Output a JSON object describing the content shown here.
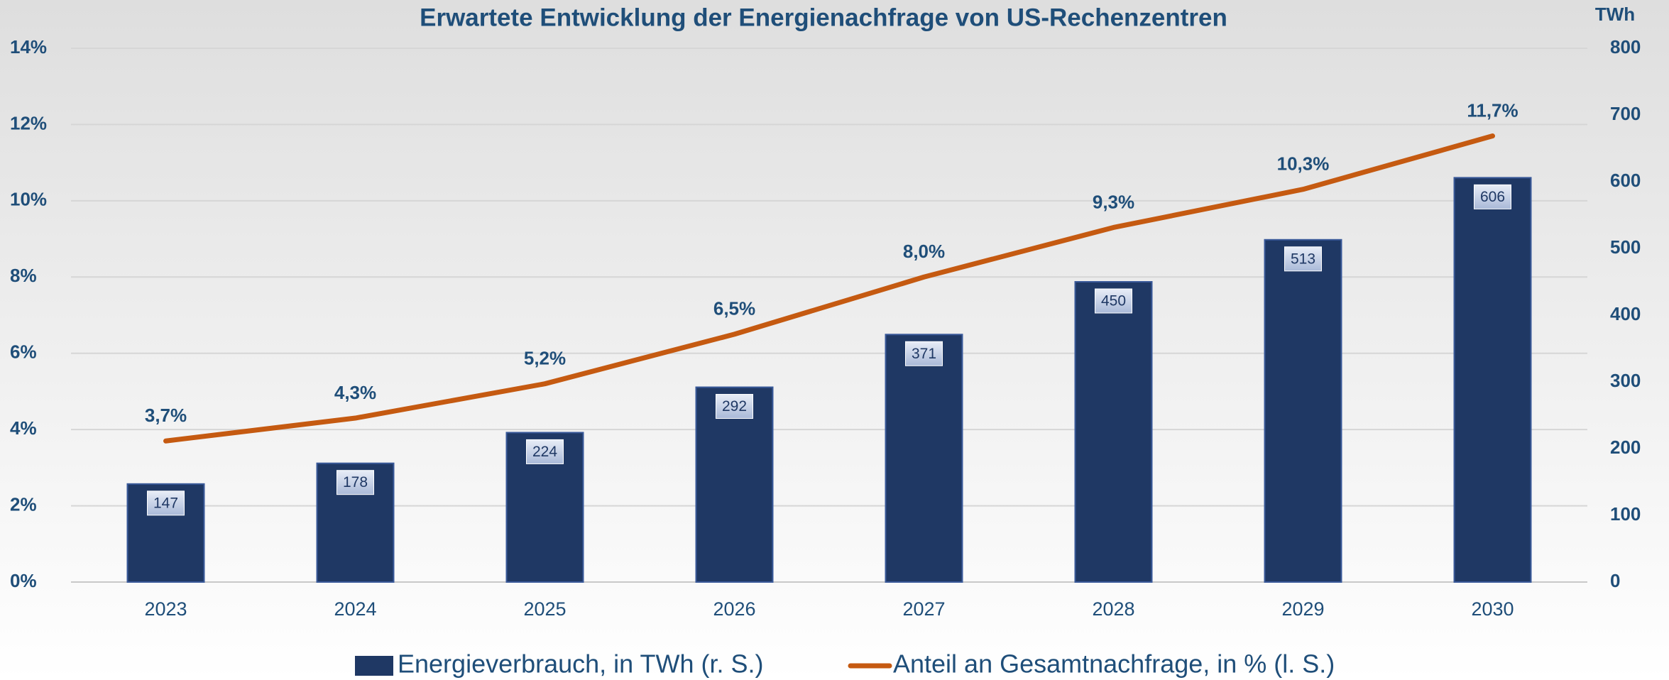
{
  "chart_data": {
    "type": "bar",
    "title": "Erwartete Entwicklung der Energienachfrage von US-Rechenzentren",
    "y2label": "TWh",
    "categories": [
      "2023",
      "2024",
      "2025",
      "2026",
      "2027",
      "2028",
      "2029",
      "2030"
    ],
    "series": [
      {
        "name": "Energieverbrauch, in TWh (r. S.)",
        "type": "bar",
        "axis": "y2",
        "color": "#1f3864",
        "values": [
          147,
          178,
          224,
          292,
          371,
          450,
          513,
          606
        ]
      },
      {
        "name": "Anteil an Gesamtnachfrage, in % (l. S.)",
        "type": "line",
        "color": "#c55a11",
        "values": [
          3.7,
          4.3,
          5.2,
          6.5,
          8.0,
          9.3,
          10.3,
          11.7
        ],
        "value_labels": [
          "3,7%",
          "4,3%",
          "5,2%",
          "6,5%",
          "8,0%",
          "9,3%",
          "10,3%",
          "11,7%"
        ]
      }
    ],
    "ylim": [
      0,
      14
    ],
    "yticks": [
      {
        "value": 0,
        "label": "0%"
      },
      {
        "value": 2,
        "label": "2%"
      },
      {
        "value": 4,
        "label": "4%"
      },
      {
        "value": 6,
        "label": "6%"
      },
      {
        "value": 8,
        "label": "8%"
      },
      {
        "value": 10,
        "label": "10%"
      },
      {
        "value": 12,
        "label": "12%"
      },
      {
        "value": 14,
        "label": "14%"
      }
    ],
    "y2lim": [
      0,
      800
    ],
    "y2ticks": [
      0,
      100,
      200,
      300,
      400,
      500,
      600,
      700,
      800
    ],
    "grid": true,
    "legend": "bottom"
  }
}
